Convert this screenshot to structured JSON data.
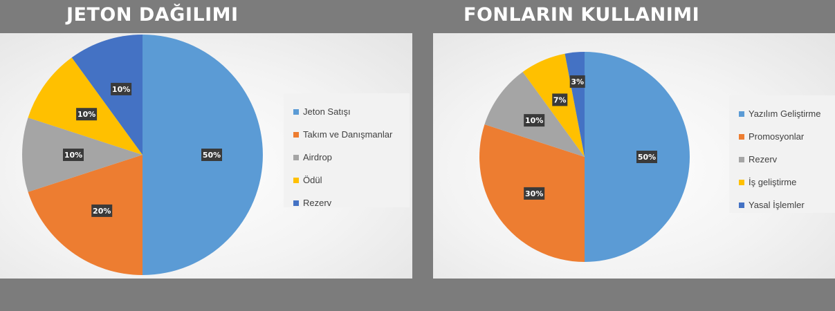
{
  "chart_data": [
    {
      "type": "pie",
      "title": "JETON DAĞILIMI",
      "categories": [
        "Jeton Satışı",
        "Takım ve Danışmanlar",
        "Airdrop",
        "Ödül",
        "Rezerv"
      ],
      "values": [
        50,
        20,
        10,
        10,
        10
      ],
      "data_labels": [
        "50%",
        "20%",
        "10%",
        "10%",
        "10%"
      ],
      "colors": [
        "#5b9bd5",
        "#ed7d31",
        "#a5a5a5",
        "#ffc000",
        "#4472c4"
      ],
      "legend": "right"
    },
    {
      "type": "pie",
      "title": "FONLARIN KULLANIMI",
      "categories": [
        "Yazılım Geliştirme",
        "Promosyonlar",
        "Rezerv",
        "İş geliştirme",
        "Yasal İşlemler"
      ],
      "values": [
        50,
        30,
        10,
        7,
        3
      ],
      "data_labels": [
        "50%",
        "30%",
        "10%",
        "7%",
        "3%"
      ],
      "colors": [
        "#5b9bd5",
        "#ed7d31",
        "#a5a5a5",
        "#ffc000",
        "#4472c4"
      ],
      "legend": "right"
    }
  ]
}
